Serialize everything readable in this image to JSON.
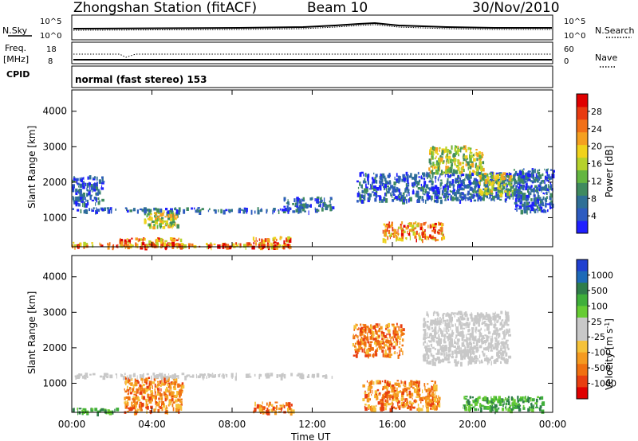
{
  "header": {
    "station": "Zhongshan Station (fitACF)",
    "beam": "Beam 10",
    "date": "30/Nov/2010"
  },
  "status_panels": {
    "nsky_label": "N.Sky",
    "nsearch_label": "N.Search",
    "noise_ticks": [
      "10^5",
      "10^0"
    ],
    "freq_label_1": "Freq.",
    "freq_label_2": "[MHz]",
    "freq_ticks": [
      "18",
      "8"
    ],
    "nave_label": "Nave",
    "nave_ticks": [
      "60",
      "0"
    ],
    "cpid_label": "CPID",
    "cpid_text": "normal (fast stereo) 153"
  },
  "chart_data": [
    {
      "type": "heatmap",
      "name": "power",
      "ylabel": "Slant Range [km]",
      "xlabel": "",
      "ylim": [
        180,
        4600
      ],
      "yticks": [
        "1000",
        "2000",
        "3000",
        "4000"
      ],
      "xlim_hours": [
        0,
        24
      ],
      "colorbar_label": "Power [dB]",
      "colorbar_ticks": [
        "4",
        "8",
        "12",
        "16",
        "20",
        "24",
        "28"
      ],
      "colorbar_colors": [
        "#1f1fff",
        "#2d5bc0",
        "#2f6f96",
        "#3f8a5f",
        "#64b641",
        "#b6d22c",
        "#f0d21c",
        "#f5a020",
        "#f27018",
        "#e83a10",
        "#e00000"
      ],
      "echo_regions": [
        {
          "t": [
            0.0,
            10.9
          ],
          "r": [
            200,
            320
          ],
          "level": "high"
        },
        {
          "t": [
            2.3,
            5.5
          ],
          "r": [
            200,
            450
          ],
          "level": "high"
        },
        {
          "t": [
            9.0,
            10.9
          ],
          "r": [
            200,
            480
          ],
          "level": "high"
        },
        {
          "t": [
            3.6,
            5.3
          ],
          "r": [
            750,
            1250
          ],
          "level": "medium"
        },
        {
          "t": [
            0.0,
            12.5
          ],
          "r": [
            1200,
            1300
          ],
          "level": "low"
        },
        {
          "t": [
            10.5,
            13.0
          ],
          "r": [
            1300,
            1600
          ],
          "level": "low"
        },
        {
          "t": [
            14.2,
            22.8
          ],
          "r": [
            1500,
            2300
          ],
          "level": "low"
        },
        {
          "t": [
            15.5,
            18.5
          ],
          "r": [
            400,
            900
          ],
          "level": "high"
        },
        {
          "t": [
            17.8,
            20.5
          ],
          "r": [
            2300,
            3050
          ],
          "level": "medium"
        },
        {
          "t": [
            20.3,
            22.0
          ],
          "r": [
            1700,
            2300
          ],
          "level": "medium"
        },
        {
          "t": [
            22.0,
            24.0
          ],
          "r": [
            1200,
            2400
          ],
          "level": "low"
        },
        {
          "t": [
            0.0,
            1.5
          ],
          "r": [
            1400,
            2200
          ],
          "level": "low"
        }
      ]
    },
    {
      "type": "heatmap",
      "name": "velocity",
      "ylabel": "Slant Range [km]",
      "xlabel": "Time UT",
      "ylim": [
        180,
        4600
      ],
      "yticks": [
        "1000",
        "2000",
        "3000",
        "4000"
      ],
      "xlim_hours": [
        0,
        24
      ],
      "xticks": [
        "00:00",
        "04:00",
        "08:00",
        "12:00",
        "16:00",
        "20:00",
        "00:00"
      ],
      "colorbar_label": "Velocity [m s",
      "colorbar_unit_exp": "-1",
      "colorbar_ticks": [
        "1000",
        "500",
        "100",
        "25",
        "-25",
        "-100",
        "-500",
        "-1000"
      ],
      "colorbar_colors": [
        "#2040d0",
        "#1e6ab8",
        "#2f7d4a",
        "#3faf3a",
        "#66cc33",
        "#c8c8c8",
        "#c8c8c8",
        "#f5c23a",
        "#f59a20",
        "#f07010",
        "#e83e10",
        "#e00000"
      ],
      "echo_regions": [
        {
          "t": [
            0.0,
            2.2
          ],
          "r": [
            200,
            320
          ],
          "level": "positive"
        },
        {
          "t": [
            2.6,
            5.5
          ],
          "r": [
            200,
            1200
          ],
          "level": "negative"
        },
        {
          "t": [
            9.0,
            11.0
          ],
          "r": [
            200,
            500
          ],
          "level": "negative"
        },
        {
          "t": [
            0.0,
            13.0
          ],
          "r": [
            1200,
            1300
          ],
          "level": "zero"
        },
        {
          "t": [
            14.5,
            18.3
          ],
          "r": [
            300,
            1100
          ],
          "level": "negative"
        },
        {
          "t": [
            17.5,
            21.8
          ],
          "r": [
            1600,
            3050
          ],
          "level": "zero"
        },
        {
          "t": [
            14.0,
            16.5
          ],
          "r": [
            1800,
            2700
          ],
          "level": "negative"
        },
        {
          "t": [
            19.5,
            23.5
          ],
          "r": [
            250,
            650
          ],
          "level": "positive"
        }
      ]
    }
  ],
  "colors": {
    "frame": "#000000",
    "background": "#ffffff"
  }
}
